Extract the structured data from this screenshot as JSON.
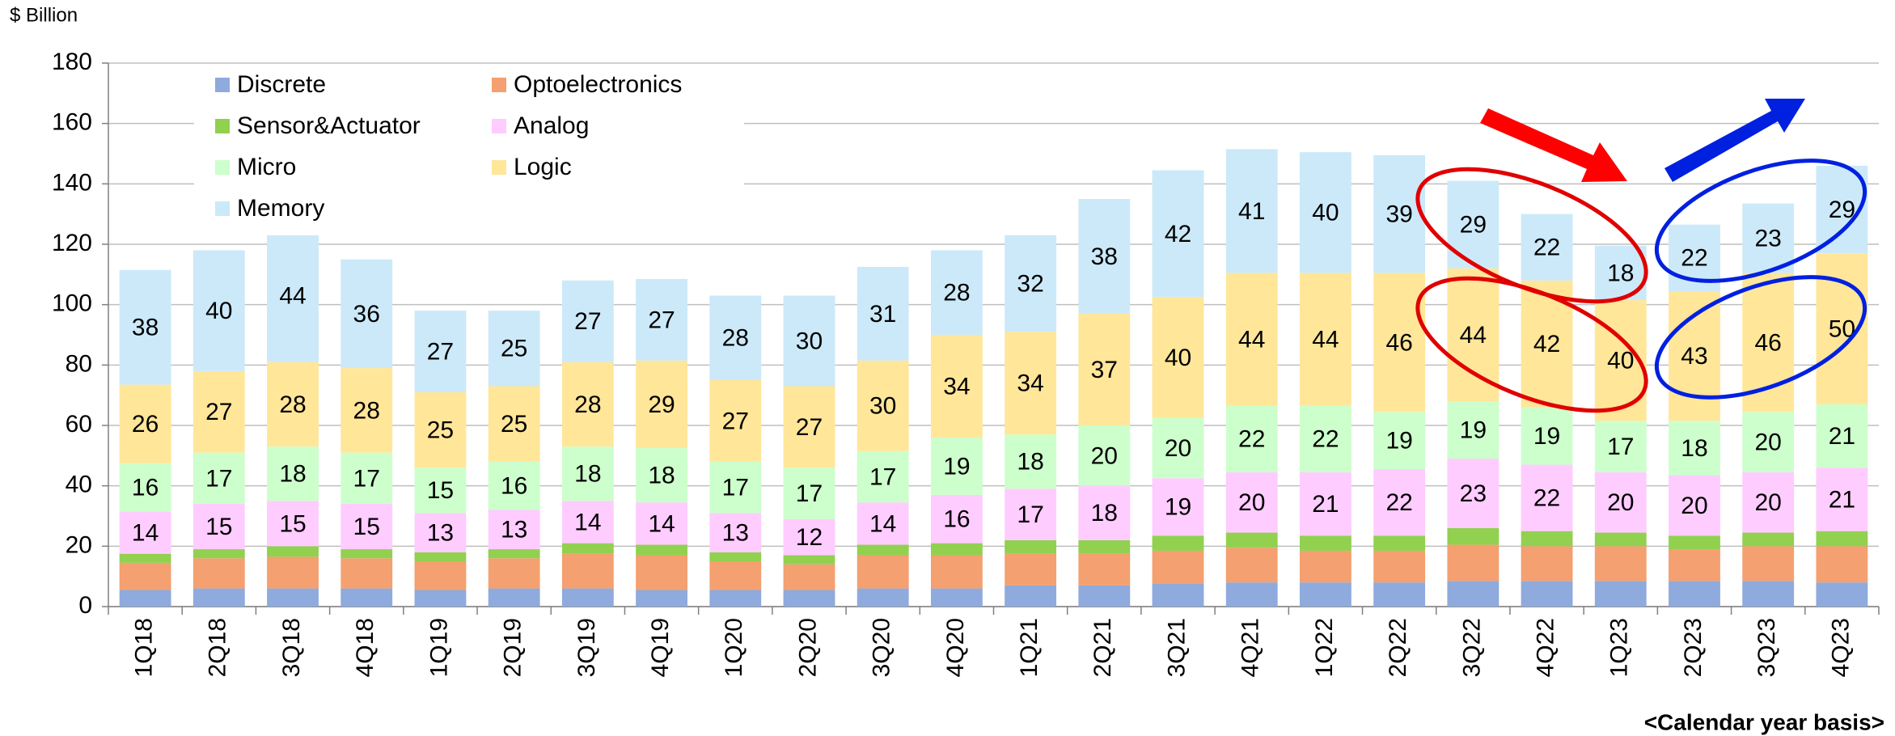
{
  "chart_data": {
    "type": "stacked_bar",
    "y_label": "$ Billion",
    "note": "<Calendar year basis>",
    "categories": [
      "1Q18",
      "2Q18",
      "3Q18",
      "4Q18",
      "1Q19",
      "2Q19",
      "3Q19",
      "4Q19",
      "1Q20",
      "2Q20",
      "3Q20",
      "4Q20",
      "1Q21",
      "2Q21",
      "3Q21",
      "4Q21",
      "1Q22",
      "2Q22",
      "3Q22",
      "4Q22",
      "1Q23",
      "2Q23",
      "3Q23",
      "4Q23"
    ],
    "ylim": [
      0,
      180
    ],
    "yticks": [
      0,
      20,
      40,
      60,
      80,
      100,
      120,
      140,
      160,
      180
    ],
    "grid": true,
    "legend": "upper-left",
    "series": [
      {
        "name": "Discrete",
        "color": "#8faadc",
        "data_labels": false,
        "values": [
          5.5,
          6,
          6,
          6,
          5.5,
          6,
          6,
          5.5,
          5.5,
          5.5,
          6,
          6,
          7,
          7,
          7.5,
          8,
          8,
          8,
          8.5,
          8.5,
          8.5,
          8.5,
          8.5,
          8
        ]
      },
      {
        "name": "Optoelectronics",
        "color": "#f4a070",
        "data_labels": false,
        "values": [
          9,
          10,
          10.5,
          10,
          9.5,
          10,
          11.5,
          11.5,
          9.5,
          8.5,
          11,
          11,
          10.5,
          10.5,
          11,
          11.5,
          10.5,
          10.5,
          12,
          11.5,
          11.5,
          10.5,
          11.5,
          12
        ]
      },
      {
        "name": "Sensor&Actuator",
        "color": "#92d050",
        "data_labels": false,
        "values": [
          3,
          3,
          3.5,
          3,
          3,
          3,
          3.5,
          3.5,
          3,
          3,
          3.5,
          4,
          4.5,
          4.5,
          5,
          5,
          5,
          5,
          5.5,
          5,
          4.5,
          4.5,
          4.5,
          5
        ]
      },
      {
        "name": "Analog",
        "color": "#ffccff",
        "data_labels": true,
        "values": [
          14,
          15,
          15,
          15,
          13,
          13,
          14,
          14,
          13,
          12,
          14,
          16,
          17,
          18,
          19,
          20,
          21,
          22,
          23,
          22,
          20,
          20,
          20,
          21
        ]
      },
      {
        "name": "Micro",
        "color": "#ccffcc",
        "data_labels": true,
        "values": [
          16,
          17,
          18,
          17,
          15,
          16,
          18,
          18,
          17,
          17,
          17,
          19,
          18,
          20,
          20,
          22,
          22,
          19,
          19,
          19,
          17,
          18,
          20,
          21
        ]
      },
      {
        "name": "Logic",
        "color": "#ffe699",
        "data_labels": true,
        "values": [
          26,
          27,
          28,
          28,
          25,
          25,
          28,
          29,
          27,
          27,
          30,
          34,
          34,
          37,
          40,
          44,
          44,
          46,
          44,
          42,
          40,
          43,
          46,
          50
        ]
      },
      {
        "name": "Memory",
        "color": "#cce9f9",
        "data_labels": true,
        "values": [
          38,
          40,
          44,
          36,
          27,
          25,
          27,
          27,
          28,
          30,
          31,
          28,
          32,
          38,
          42,
          41,
          40,
          39,
          29,
          22,
          18,
          22,
          23,
          29
        ]
      }
    ]
  }
}
